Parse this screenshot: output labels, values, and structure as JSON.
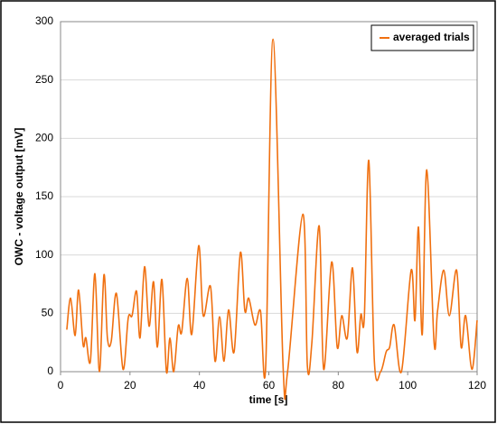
{
  "chart_data": {
    "type": "line",
    "xlabel": "time [s]",
    "ylabel": "OWC - voltage output [mV]",
    "x": [
      1.8,
      2.9,
      4.2,
      5.2,
      6.5,
      7.3,
      8.6,
      9.9,
      11.2,
      12.5,
      13.5,
      14.6,
      16.1,
      18,
      19.5,
      20.6,
      21.9,
      22.9,
      24.2,
      25.5,
      26.8,
      27.9,
      29.2,
      30.5,
      31.5,
      32.6,
      33.9,
      34.9,
      36.5,
      37.8,
      39.8,
      41.1,
      43.2,
      44.5,
      45.8,
      47.1,
      48.4,
      50,
      51.8,
      53.1,
      54.2,
      56,
      57.6,
      59.1,
      61.2,
      64.1,
      65.4,
      69.8,
      71.1,
      72.4,
      74.5,
      75.8,
      78.1,
      79.7,
      81,
      82.6,
      84.1,
      85.4,
      86.5,
      87.5,
      88.8,
      90.4,
      92.2,
      93.8,
      94.8,
      96.1,
      98.2,
      101,
      102.1,
      103.1,
      104.2,
      105.5,
      107.6,
      108.6,
      110.4,
      112,
      114.1,
      115.4,
      116.7,
      118.5,
      120
    ],
    "series": [
      {
        "name": "averaged trials",
        "color": "#f07010",
        "values": [
          36,
          63,
          31,
          70,
          23,
          29,
          9,
          84,
          0,
          83,
          29,
          26,
          67,
          2,
          46,
          48,
          69,
          29,
          90,
          39,
          77,
          21,
          79,
          0,
          29,
          0,
          39,
          34,
          80,
          32,
          108,
          48,
          73,
          9,
          47,
          9,
          53,
          17,
          102,
          52,
          63,
          40,
          52,
          5,
          285,
          5,
          0,
          135,
          5,
          25,
          125,
          2,
          94,
          21,
          48,
          29,
          89,
          17,
          49,
          46,
          181,
          9,
          0,
          17,
          21,
          40,
          0,
          87,
          44,
          124,
          32,
          173,
          25,
          52,
          87,
          48,
          87,
          21,
          48,
          2,
          44
        ]
      }
    ],
    "xlim": [
      0,
      120
    ],
    "xticks": [
      0,
      20,
      40,
      60,
      80,
      100,
      120
    ],
    "ylim": [
      0,
      300
    ],
    "yticks": [
      0,
      50,
      100,
      150,
      200,
      250,
      300
    ],
    "grid": true,
    "legend": "upper right"
  }
}
